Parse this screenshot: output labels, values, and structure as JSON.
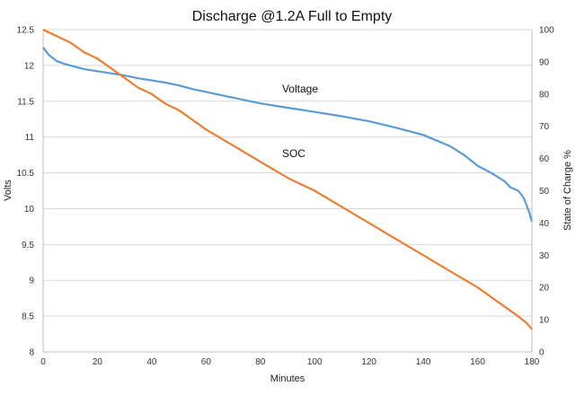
{
  "chart_data": {
    "type": "line",
    "title": "Discharge @1.2A Full to Empty",
    "xlabel": "Minutes",
    "ylabel": "Volts",
    "y2label": "State of Charge %",
    "xlim": [
      0,
      180
    ],
    "ylim": [
      8,
      12.5
    ],
    "y2lim": [
      0,
      100
    ],
    "x_ticks": [
      "0",
      "20",
      "40",
      "60",
      "80",
      "100",
      "120",
      "140",
      "160",
      "180"
    ],
    "y_ticks": [
      "8",
      "8.5",
      "9",
      "9.5",
      "10",
      "10.5",
      "11",
      "11.5",
      "12",
      "12.5"
    ],
    "y2_ticks": [
      "0",
      "10",
      "20",
      "30",
      "40",
      "50",
      "60",
      "70",
      "80",
      "90",
      "100"
    ],
    "grid": "horizontal",
    "series": [
      {
        "name": "Voltage",
        "axis": "left",
        "color": "#5b9bd5",
        "x": [
          0,
          2,
          5,
          8,
          10,
          15,
          20,
          25,
          30,
          35,
          40,
          45,
          50,
          55,
          60,
          70,
          80,
          90,
          100,
          110,
          120,
          130,
          140,
          150,
          155,
          160,
          165,
          170,
          172,
          175,
          177,
          178,
          179,
          180
        ],
        "values": [
          12.25,
          12.15,
          12.06,
          12.02,
          12.0,
          11.95,
          11.92,
          11.89,
          11.86,
          11.82,
          11.79,
          11.76,
          11.72,
          11.67,
          11.63,
          11.55,
          11.47,
          11.41,
          11.35,
          11.29,
          11.22,
          11.13,
          11.03,
          10.87,
          10.75,
          10.6,
          10.5,
          10.38,
          10.3,
          10.25,
          10.15,
          10.05,
          9.95,
          9.82
        ]
      },
      {
        "name": "SOC",
        "axis": "right",
        "color": "#ed7d31",
        "x": [
          0,
          5,
          10,
          15,
          20,
          25,
          30,
          35,
          40,
          45,
          50,
          55,
          60,
          70,
          80,
          90,
          100,
          110,
          120,
          130,
          140,
          150,
          160,
          170,
          175,
          178,
          180
        ],
        "values": [
          100,
          98,
          96,
          93,
          91,
          88,
          85,
          82,
          80,
          77,
          75,
          72,
          69,
          64,
          59,
          54,
          50,
          45,
          40,
          35,
          30,
          25,
          20,
          14,
          11,
          9,
          7
        ]
      }
    ],
    "annotations": [
      {
        "text": "Voltage",
        "x": 88,
        "y": 11.62
      },
      {
        "text": "SOC",
        "x": 88,
        "y": 10.72
      }
    ]
  }
}
